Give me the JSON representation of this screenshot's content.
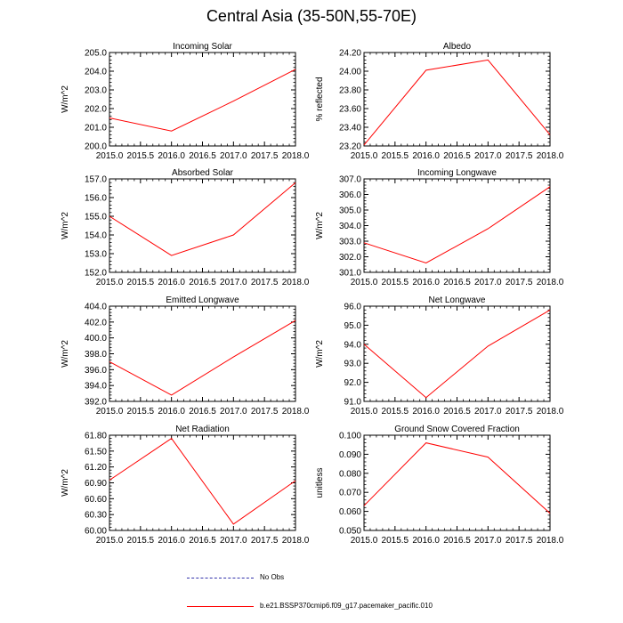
{
  "title": "Central Asia (35-50N,55-70E)",
  "legend": {
    "obs_label": "No Obs",
    "model_label": "b.e21.BSSP370cmip6.f09_g17.pacemaker_pacific.010",
    "model_color": "#ff0000",
    "obs_color": "#3333aa"
  },
  "chart_data": [
    {
      "type": "line",
      "title": "Incoming Solar",
      "ylabel": "W/m^2",
      "x": [
        2015,
        2016,
        2017,
        2018
      ],
      "values": [
        201.5,
        200.8,
        202.4,
        204.1
      ],
      "xlim": [
        2015,
        2018
      ],
      "ylim": [
        200,
        205
      ],
      "xticks": [
        "2015.0",
        "2015.5",
        "2016.0",
        "2016.5",
        "2017.0",
        "2017.5",
        "2018.0"
      ],
      "yticks": [
        "200.0",
        "201.0",
        "202.0",
        "203.0",
        "204.0",
        "205.0"
      ]
    },
    {
      "type": "line",
      "title": "Albedo",
      "ylabel": "% reflected",
      "x": [
        2015,
        2016,
        2017,
        2018
      ],
      "values": [
        23.21,
        24.01,
        24.12,
        23.32
      ],
      "xlim": [
        2015,
        2018
      ],
      "ylim": [
        23.2,
        24.2
      ],
      "xticks": [
        "2015.0",
        "2015.5",
        "2016.0",
        "2016.5",
        "2017.0",
        "2017.5",
        "2018.0"
      ],
      "yticks": [
        "23.20",
        "23.40",
        "23.60",
        "23.80",
        "24.00",
        "24.20"
      ]
    },
    {
      "type": "line",
      "title": "Absorbed Solar",
      "ylabel": "W/m^2",
      "x": [
        2015,
        2016,
        2017,
        2018
      ],
      "values": [
        155.0,
        152.9,
        154.0,
        156.8
      ],
      "xlim": [
        2015,
        2018
      ],
      "ylim": [
        152,
        157
      ],
      "xticks": [
        "2015.0",
        "2015.5",
        "2016.0",
        "2016.5",
        "2017.0",
        "2017.5",
        "2018.0"
      ],
      "yticks": [
        "152.0",
        "153.0",
        "154.0",
        "155.0",
        "156.0",
        "157.0"
      ]
    },
    {
      "type": "line",
      "title": "Incoming Longwave",
      "ylabel": "W/m^2",
      "x": [
        2015,
        2016,
        2017,
        2018
      ],
      "values": [
        302.9,
        301.6,
        303.8,
        306.5
      ],
      "xlim": [
        2015,
        2018
      ],
      "ylim": [
        301,
        307
      ],
      "xticks": [
        "2015.0",
        "2015.5",
        "2016.0",
        "2016.5",
        "2017.0",
        "2017.5",
        "2018.0"
      ],
      "yticks": [
        "301.0",
        "302.0",
        "303.0",
        "304.0",
        "305.0",
        "306.0",
        "307.0"
      ]
    },
    {
      "type": "line",
      "title": "Emitted Longwave",
      "ylabel": "W/m^2",
      "x": [
        2015,
        2016,
        2017,
        2018
      ],
      "values": [
        397.0,
        392.8,
        397.6,
        402.2
      ],
      "xlim": [
        2015,
        2018
      ],
      "ylim": [
        392,
        404
      ],
      "xticks": [
        "2015.0",
        "2015.5",
        "2016.0",
        "2016.5",
        "2017.0",
        "2017.5",
        "2018.0"
      ],
      "yticks": [
        "392.0",
        "394.0",
        "396.0",
        "398.0",
        "400.0",
        "402.0",
        "404.0"
      ]
    },
    {
      "type": "line",
      "title": "Net Longwave",
      "ylabel": "W/m^2",
      "x": [
        2015,
        2016,
        2017,
        2018
      ],
      "values": [
        94.0,
        91.2,
        93.9,
        95.8
      ],
      "xlim": [
        2015,
        2018
      ],
      "ylim": [
        91,
        96
      ],
      "xticks": [
        "2015.0",
        "2015.5",
        "2016.0",
        "2016.5",
        "2017.0",
        "2017.5",
        "2018.0"
      ],
      "yticks": [
        "91.0",
        "92.0",
        "93.0",
        "94.0",
        "95.0",
        "96.0"
      ]
    },
    {
      "type": "line",
      "title": "Net Radiation",
      "ylabel": "W/m^2",
      "x": [
        2015,
        2016,
        2017,
        2018
      ],
      "values": [
        60.95,
        61.74,
        60.12,
        60.94
      ],
      "xlim": [
        2015,
        2018
      ],
      "ylim": [
        60,
        61.8
      ],
      "xticks": [
        "2015.0",
        "2015.5",
        "2016.0",
        "2016.5",
        "2017.0",
        "2017.5",
        "2018.0"
      ],
      "yticks": [
        "60.00",
        "60.30",
        "60.60",
        "60.90",
        "61.20",
        "61.50",
        "61.80"
      ]
    },
    {
      "type": "line",
      "title": "Ground Snow Covered Fraction",
      "ylabel": "unitless",
      "x": [
        2015,
        2016,
        2017,
        2018
      ],
      "values": [
        0.063,
        0.096,
        0.0885,
        0.059
      ],
      "xlim": [
        2015,
        2018
      ],
      "ylim": [
        0.05,
        0.1
      ],
      "xticks": [
        "2015.0",
        "2015.5",
        "2016.0",
        "2016.5",
        "2017.0",
        "2017.5",
        "2018.0"
      ],
      "yticks": [
        "0.050",
        "0.060",
        "0.070",
        "0.080",
        "0.090",
        "0.100"
      ]
    }
  ]
}
